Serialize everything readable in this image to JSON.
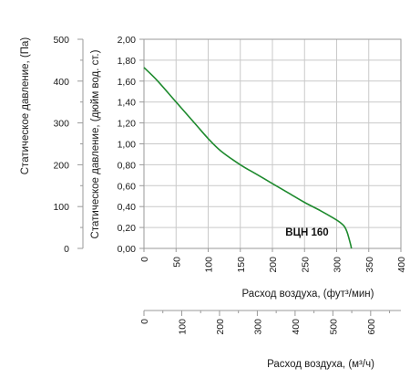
{
  "chart_data": {
    "type": "line",
    "series": [
      {
        "name": "ВЦН 160",
        "color": "#1e8a2e",
        "x": [
          0,
          20,
          50,
          80,
          100,
          120,
          150,
          175,
          200,
          225,
          250,
          275,
          295,
          305,
          312,
          316,
          319,
          322,
          323
        ],
        "y": [
          1.73,
          1.61,
          1.4,
          1.19,
          1.05,
          0.93,
          0.8,
          0.71,
          0.62,
          0.53,
          0.44,
          0.36,
          0.29,
          0.25,
          0.21,
          0.16,
          0.1,
          0.03,
          0.0
        ]
      }
    ],
    "primary_x_axis": {
      "label": "Расход воздуха, (фут³/мин)",
      "range": [
        0,
        400
      ],
      "ticks": [
        "0",
        "50",
        "100",
        "150",
        "200",
        "250",
        "300",
        "350",
        "400"
      ]
    },
    "secondary_x_axis": {
      "label": "Расход воздуха, (м³/ч)",
      "range": [
        0,
        680
      ],
      "ticks": [
        "0",
        "100",
        "200",
        "300",
        "400",
        "500",
        "600"
      ]
    },
    "primary_y_axis": {
      "label": "Статическое давление, (дюйм вод. ст.)",
      "range": [
        0,
        2.0
      ],
      "ticks": [
        "0,00",
        "0,20",
        "0,40",
        "0,60",
        "0,80",
        "1,00",
        "1,20",
        "1,40",
        "1,60",
        "1,80",
        "2,00"
      ]
    },
    "secondary_y_axis": {
      "label": "Статическое давление, (Па)",
      "range": [
        0,
        500
      ],
      "ticks": [
        "0",
        "100",
        "200",
        "300",
        "400",
        "500"
      ]
    },
    "grid": true,
    "colors": {
      "grid": "#c9c9c9",
      "frame": "#9a9a9a",
      "series": "#1e8a2e"
    }
  }
}
